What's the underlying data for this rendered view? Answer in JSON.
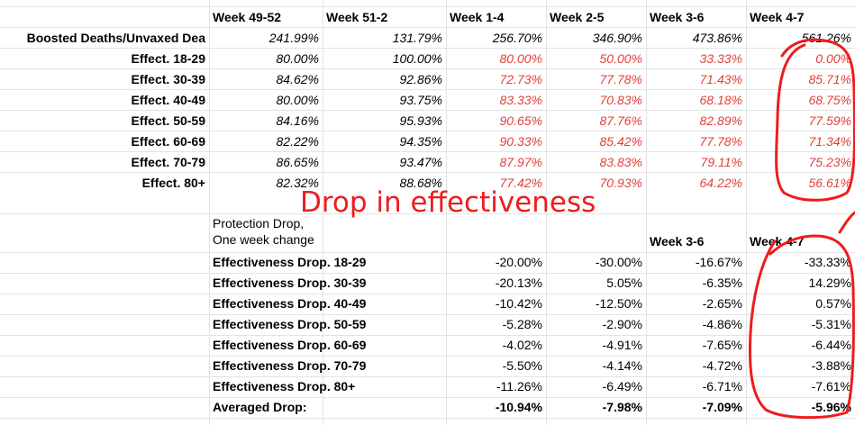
{
  "week_headers": [
    "Week 49-52",
    "Week 51-2",
    "Week 1-4",
    "Week 2-5",
    "Week 3-6",
    "Week 4-7"
  ],
  "top_rows": [
    {
      "label": "Boosted Deaths/Unvaxed Dea",
      "values": [
        "241.99%",
        "131.79%",
        "256.70%",
        "346.90%",
        "473.86%",
        "561.26%"
      ]
    },
    {
      "label": "Effect. 18-29",
      "values": [
        "80.00%",
        "100.00%",
        "80.00%",
        "50.00%",
        "33.33%",
        "0.00%"
      ]
    },
    {
      "label": "Effect. 30-39",
      "values": [
        "84.62%",
        "92.86%",
        "72.73%",
        "77.78%",
        "71.43%",
        "85.71%"
      ]
    },
    {
      "label": "Effect. 40-49",
      "values": [
        "80.00%",
        "93.75%",
        "83.33%",
        "70.83%",
        "68.18%",
        "68.75%"
      ]
    },
    {
      "label": "Effect. 50-59",
      "values": [
        "84.16%",
        "95.93%",
        "90.65%",
        "87.76%",
        "82.89%",
        "77.59%"
      ]
    },
    {
      "label": "Effect. 60-69",
      "values": [
        "82.22%",
        "94.35%",
        "90.33%",
        "85.42%",
        "77.78%",
        "71.34%"
      ]
    },
    {
      "label": "Effect. 70-79",
      "values": [
        "86.65%",
        "93.47%",
        "87.97%",
        "83.83%",
        "79.11%",
        "75.23%"
      ]
    },
    {
      "label": "Effect. 80+",
      "values": [
        "82.32%",
        "88.68%",
        "77.42%",
        "70.93%",
        "64.22%",
        "56.61%"
      ]
    }
  ],
  "annotation": "Drop in effectiveness",
  "protection": {
    "label_line1": "Protection Drop,",
    "label_line2": "One week change",
    "week_headers": [
      "Week 3-6",
      "Week 4-7"
    ]
  },
  "drop_rows": [
    {
      "label": "Effectiveness Drop. 18-29",
      "values": [
        "-20.00%",
        "-30.00%",
        "-16.67%",
        "-33.33%"
      ]
    },
    {
      "label": "Effectiveness Drop. 30-39",
      "values": [
        "-20.13%",
        "5.05%",
        "-6.35%",
        "14.29%"
      ]
    },
    {
      "label": "Effectiveness Drop. 40-49",
      "values": [
        "-10.42%",
        "-12.50%",
        "-2.65%",
        "0.57%"
      ]
    },
    {
      "label": "Effectiveness Drop. 50-59",
      "values": [
        "-5.28%",
        "-2.90%",
        "-4.86%",
        "-5.31%"
      ]
    },
    {
      "label": "Effectiveness Drop. 60-69",
      "values": [
        "-4.02%",
        "-4.91%",
        "-7.65%",
        "-6.44%"
      ]
    },
    {
      "label": "Effectiveness Drop. 70-79",
      "values": [
        "-5.50%",
        "-4.14%",
        "-4.72%",
        "-3.88%"
      ]
    },
    {
      "label": "Effectiveness Drop. 80+",
      "values": [
        "-11.26%",
        "-6.49%",
        "-6.71%",
        "-7.61%"
      ]
    },
    {
      "label": "Averaged Drop:",
      "values": [
        "-10.94%",
        "-7.98%",
        "-7.09%",
        "-5.96%"
      ]
    }
  ],
  "colors": {
    "highlight_text": "#e0413a",
    "annotation_ink": "#ee1c1c",
    "gridline": "#e3e3e3"
  }
}
